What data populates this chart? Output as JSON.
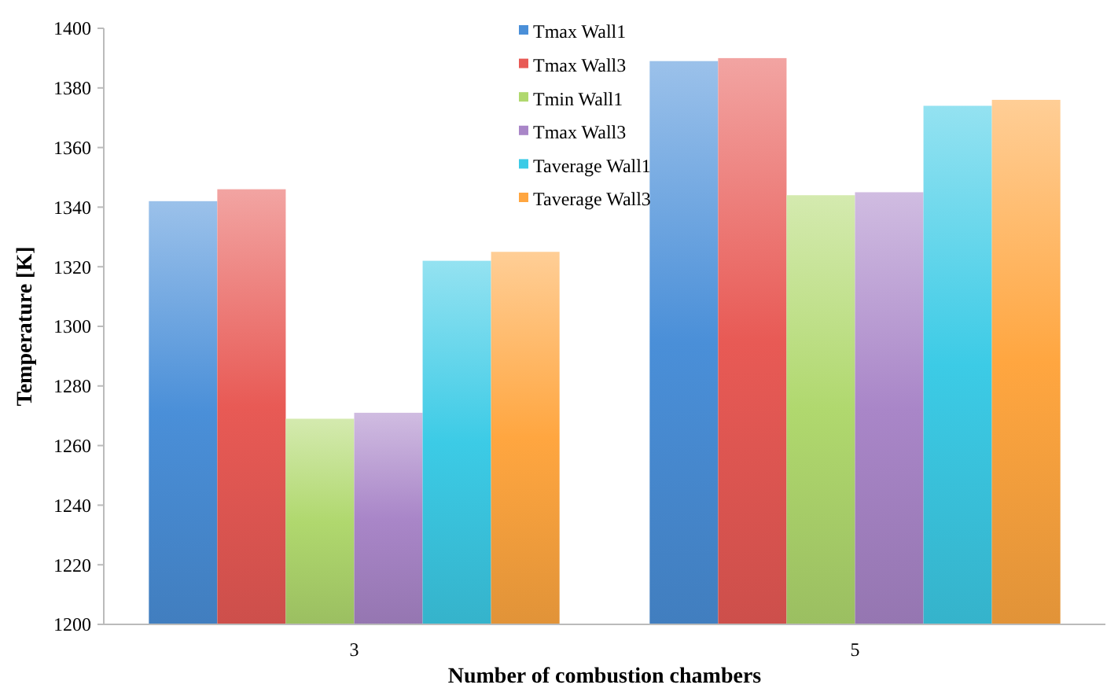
{
  "chart_data": {
    "type": "bar",
    "xlabel": "Number of combustion chambers",
    "ylabel": "Temperature [K]",
    "categories": [
      "3",
      "5"
    ],
    "series": [
      {
        "name": "Tmax Wall1",
        "color": "#4a8fd8",
        "values": [
          1342,
          1389
        ]
      },
      {
        "name": "Tmax Wall3",
        "color": "#e85a55",
        "values": [
          1346,
          1390
        ]
      },
      {
        "name": "Tmin Wall1",
        "color": "#b0d86e",
        "values": [
          1269,
          1344
        ]
      },
      {
        "name": "Tmax Wall3",
        "color": "#a986c8",
        "values": [
          1271,
          1345
        ]
      },
      {
        "name": "Taverage Wall1",
        "color": "#3ccbe6",
        "values": [
          1322,
          1374
        ]
      },
      {
        "name": "Taverage Wall3",
        "color": "#ffa640",
        "values": [
          1325,
          1376
        ]
      }
    ],
    "ylim": [
      1200,
      1400
    ],
    "yticks": [
      1200,
      1220,
      1240,
      1260,
      1280,
      1300,
      1320,
      1340,
      1360,
      1380,
      1400
    ],
    "grid": false,
    "legend": "top"
  }
}
